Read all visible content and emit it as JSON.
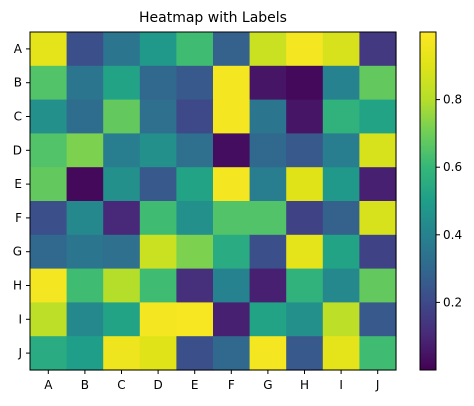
{
  "chart_data": {
    "type": "heatmap",
    "title": "Heatmap with Labels",
    "xlabel": "",
    "ylabel": "",
    "x_categories": [
      "A",
      "B",
      "C",
      "D",
      "E",
      "F",
      "G",
      "H",
      "I",
      "J"
    ],
    "y_categories": [
      "A",
      "B",
      "C",
      "D",
      "E",
      "F",
      "G",
      "H",
      "I",
      "J"
    ],
    "values": [
      [
        0.92,
        0.22,
        0.35,
        0.48,
        0.62,
        0.28,
        0.85,
        0.97,
        0.88,
        0.15
      ],
      [
        0.65,
        0.35,
        0.52,
        0.3,
        0.25,
        0.97,
        0.05,
        0.02,
        0.4,
        0.68
      ],
      [
        0.45,
        0.32,
        0.68,
        0.33,
        0.2,
        0.97,
        0.35,
        0.05,
        0.58,
        0.52
      ],
      [
        0.65,
        0.72,
        0.38,
        0.45,
        0.33,
        0.03,
        0.3,
        0.25,
        0.38,
        0.88
      ],
      [
        0.68,
        0.02,
        0.45,
        0.25,
        0.52,
        0.97,
        0.38,
        0.9,
        0.48,
        0.08
      ],
      [
        0.22,
        0.42,
        0.1,
        0.62,
        0.45,
        0.65,
        0.65,
        0.18,
        0.28,
        0.88
      ],
      [
        0.3,
        0.35,
        0.33,
        0.85,
        0.72,
        0.55,
        0.22,
        0.92,
        0.52,
        0.18
      ],
      [
        0.97,
        0.62,
        0.8,
        0.62,
        0.12,
        0.4,
        0.08,
        0.58,
        0.42,
        0.68
      ],
      [
        0.82,
        0.42,
        0.52,
        0.97,
        0.98,
        0.08,
        0.52,
        0.45,
        0.82,
        0.25
      ],
      [
        0.55,
        0.5,
        0.95,
        0.9,
        0.22,
        0.3,
        0.97,
        0.25,
        0.92,
        0.62
      ]
    ],
    "colormap": "viridis",
    "vmin": 0.0,
    "vmax": 1.0,
    "colorbar_ticks": [
      "0.2",
      "0.4",
      "0.6",
      "0.8"
    ],
    "colorbar_tick_values": [
      0.2,
      0.4,
      0.6,
      0.8
    ],
    "grid": false,
    "legend": "colorbar-right"
  }
}
